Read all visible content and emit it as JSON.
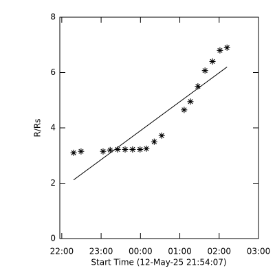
{
  "chart_data": {
    "type": "scatter",
    "ylabel": "R/Rs",
    "xlabel": "Start Time (12-May-25 21:54:07)",
    "xlim": [
      21.95,
      27.0
    ],
    "xticks": [
      {
        "value": 22,
        "label": "22:00"
      },
      {
        "value": 23,
        "label": "23:00"
      },
      {
        "value": 24,
        "label": "00:00"
      },
      {
        "value": 25,
        "label": "01:00"
      },
      {
        "value": 26,
        "label": "02:00"
      },
      {
        "value": 27,
        "label": "03:00"
      }
    ],
    "ylim": [
      0,
      8
    ],
    "yticks": [
      0,
      2,
      4,
      6,
      8
    ],
    "color": "#000000",
    "series": [
      {
        "style": "asterisk",
        "x": [
          22.3,
          22.49,
          23.05,
          23.23,
          23.42,
          23.61,
          23.8,
          23.99,
          24.15,
          24.35,
          24.54,
          25.11,
          25.27,
          25.46,
          25.64,
          25.83,
          26.02,
          26.2
        ],
        "values": [
          3.1,
          3.15,
          3.15,
          3.2,
          3.22,
          3.22,
          3.22,
          3.22,
          3.25,
          3.5,
          3.72,
          4.65,
          4.95,
          5.5,
          6.07,
          6.4,
          6.8,
          6.9
        ]
      },
      {
        "style": "line",
        "x": [
          22.3,
          26.2
        ],
        "values": [
          2.12,
          6.2
        ]
      }
    ]
  }
}
